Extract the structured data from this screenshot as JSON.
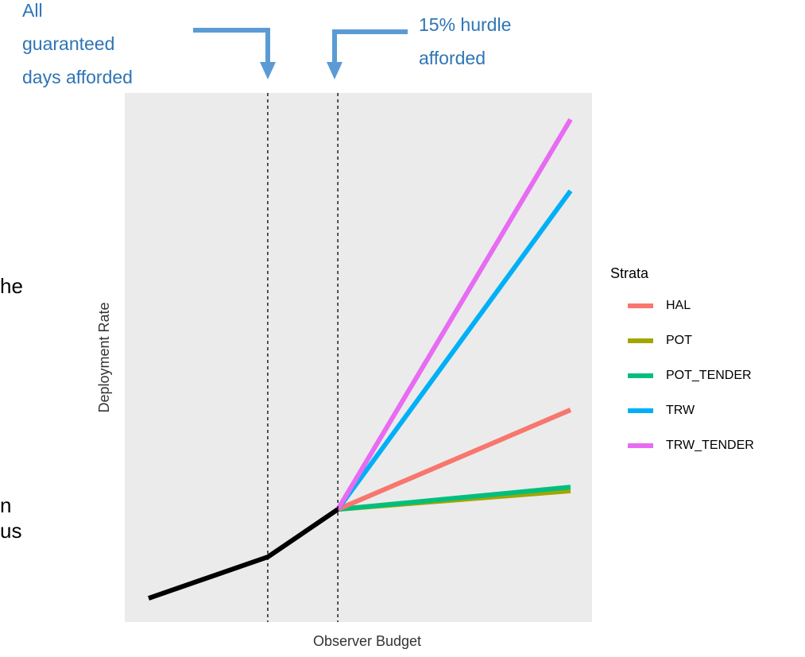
{
  "chart_data": {
    "type": "line",
    "xlabel": "Observer Budget",
    "ylabel": "Deployment Rate",
    "legend_title": "Strata",
    "xlim": [
      0,
      100
    ],
    "ylim": [
      0,
      100
    ],
    "x": [
      5.1,
      30.6,
      45.6,
      95.4
    ],
    "baseline": {
      "color": "#000000",
      "values": [
        4.5,
        12.3,
        21.3,
        null
      ]
    },
    "series": [
      {
        "name": "HAL",
        "color": "#f8766d",
        "values": [
          null,
          null,
          21.3,
          40.1
        ]
      },
      {
        "name": "POT",
        "color": "#a3a500",
        "values": [
          null,
          null,
          21.3,
          24.8
        ]
      },
      {
        "name": "POT_TENDER",
        "color": "#00bf7d",
        "values": [
          null,
          null,
          21.3,
          25.5
        ]
      },
      {
        "name": "TRW",
        "color": "#00b0f6",
        "values": [
          null,
          null,
          21.3,
          81.5
        ]
      },
      {
        "name": "TRW_TENDER",
        "color": "#e76bf3",
        "values": [
          null,
          null,
          21.3,
          95.0
        ]
      }
    ],
    "vlines": [
      30.6,
      45.6
    ],
    "annotations": [
      {
        "lines": [
          "All",
          "guaranteed",
          "days afforded"
        ]
      },
      {
        "lines": [
          "15% hurdle",
          "afforded"
        ]
      }
    ]
  },
  "slide_text_fragments": [
    "he",
    "n",
    "us"
  ]
}
